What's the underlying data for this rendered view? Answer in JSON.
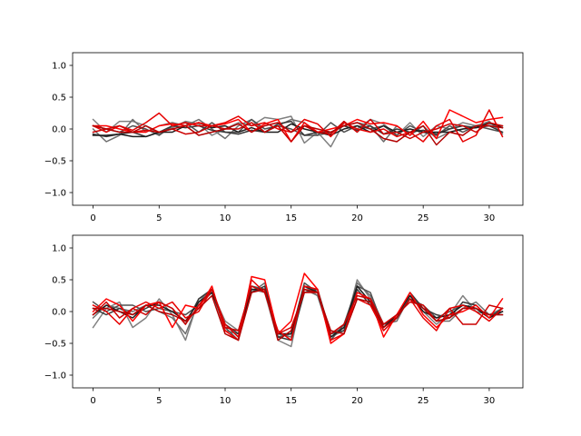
{
  "chart_data": [
    {
      "type": "line",
      "title": "",
      "xlabel": "",
      "ylabel": "",
      "xlim": [
        -1.55,
        32.55
      ],
      "ylim": [
        -1.2,
        1.2
      ],
      "xticks": [
        0,
        5,
        10,
        15,
        20,
        25,
        30
      ],
      "yticks": [
        -1.0,
        -0.5,
        0.0,
        0.5,
        1.0
      ],
      "xtick_labels": [
        "0",
        "5",
        "10",
        "15",
        "20",
        "25",
        "30"
      ],
      "ytick_labels": [
        "−1.0",
        "−0.5",
        "0.0",
        "0.5",
        "1.0"
      ],
      "grid": false,
      "legend": "none",
      "x": [
        0,
        1,
        2,
        3,
        4,
        5,
        6,
        7,
        8,
        9,
        10,
        11,
        12,
        13,
        14,
        15,
        16,
        17,
        18,
        19,
        20,
        21,
        22,
        23,
        24,
        25,
        26,
        27,
        28,
        29,
        30,
        31
      ],
      "series": [
        {
          "color": "#808080",
          "values": [
            0.15,
            -0.05,
            0.12,
            0.12,
            0.05,
            -0.08,
            0.02,
            0.12,
            0.08,
            -0.1,
            0.0,
            0.1,
            0.05,
            0.18,
            0.15,
            0.2,
            -0.22,
            -0.05,
            -0.28,
            0.1,
            0.0,
            0.15,
            0.08,
            -0.1,
            0.1,
            -0.12,
            0.05,
            0.0,
            0.1,
            0.05,
            0.12,
            -0.08
          ]
        },
        {
          "color": "#6e6e6e",
          "values": [
            0.0,
            -0.2,
            -0.1,
            0.15,
            -0.05,
            0.05,
            0.1,
            0.05,
            0.15,
            0.0,
            -0.15,
            0.05,
            0.15,
            -0.05,
            0.05,
            0.15,
            0.1,
            -0.1,
            -0.05,
            0.05,
            0.1,
            0.05,
            -0.2,
            0.05,
            -0.1,
            0.05,
            -0.15,
            -0.05,
            0.0,
            0.05,
            0.08,
            0.05
          ]
        },
        {
          "color": "#505050",
          "values": [
            0.05,
            0.0,
            -0.05,
            0.05,
            0.0,
            -0.1,
            0.05,
            0.1,
            -0.05,
            0.1,
            -0.05,
            -0.05,
            0.15,
            0.0,
            0.05,
            0.0,
            -0.1,
            -0.1,
            0.1,
            -0.05,
            0.05,
            0.0,
            0.05,
            -0.1,
            0.05,
            -0.05,
            -0.1,
            0.05,
            -0.05,
            0.05,
            0.0,
            -0.05
          ]
        },
        {
          "color": "#383838",
          "values": [
            -0.08,
            -0.12,
            -0.08,
            -0.05,
            -0.12,
            -0.05,
            0.05,
            0.02,
            0.05,
            -0.02,
            -0.05,
            -0.08,
            -0.02,
            -0.05,
            0.08,
            0.12,
            -0.1,
            -0.05,
            -0.05,
            0.05,
            -0.02,
            0.05,
            -0.08,
            0.0,
            -0.05,
            -0.02,
            -0.08,
            0.0,
            0.05,
            0.02,
            0.05,
            -0.05
          ]
        },
        {
          "color": "#1e1e1e",
          "values": [
            -0.1,
            -0.1,
            -0.08,
            -0.12,
            -0.12,
            -0.05,
            -0.05,
            0.05,
            0.1,
            0.02,
            0.05,
            -0.05,
            0.02,
            -0.05,
            -0.05,
            0.08,
            0.0,
            -0.05,
            -0.1,
            0.0,
            0.05,
            -0.05,
            0.05,
            -0.05,
            0.0,
            -0.05,
            -0.05,
            -0.05,
            0.0,
            0.02,
            0.1,
            0.02
          ]
        },
        {
          "color": "#ff0000",
          "values": [
            0.05,
            0.05,
            0.0,
            -0.05,
            -0.05,
            0.05,
            0.08,
            0.05,
            0.1,
            0.05,
            0.08,
            0.15,
            -0.05,
            0.08,
            0.15,
            -0.2,
            0.1,
            -0.05,
            0.0,
            0.05,
            0.15,
            0.08,
            0.1,
            0.05,
            -0.1,
            0.12,
            -0.15,
            0.3,
            0.2,
            0.1,
            0.15,
            0.18
          ]
        },
        {
          "color": "#e60000",
          "values": [
            0.05,
            -0.05,
            0.05,
            -0.02,
            0.1,
            0.25,
            0.05,
            0.1,
            0.05,
            0.05,
            0.1,
            0.2,
            0.05,
            0.1,
            0.0,
            -0.05,
            0.15,
            0.08,
            -0.12,
            0.1,
            0.0,
            -0.05,
            0.0,
            -0.12,
            -0.05,
            -0.2,
            0.05,
            0.15,
            -0.2,
            -0.1,
            0.3,
            -0.12
          ]
        },
        {
          "color": "#cc0000",
          "values": [
            -0.05,
            0.0,
            0.05,
            -0.05,
            -0.02,
            -0.05,
            0.0,
            -0.08,
            -0.05,
            0.05,
            0.0,
            0.0,
            0.1,
            -0.05,
            0.05,
            -0.2,
            0.05,
            -0.05,
            -0.08,
            0.12,
            -0.05,
            0.15,
            -0.08,
            -0.05,
            -0.15,
            -0.05,
            0.0,
            0.08,
            0.05,
            -0.05,
            0.1,
            0.05
          ]
        },
        {
          "color": "#b30000",
          "values": [
            0.05,
            0.0,
            -0.05,
            -0.05,
            0.05,
            -0.05,
            0.0,
            0.05,
            -0.1,
            -0.05,
            0.0,
            0.08,
            -0.05,
            0.05,
            0.1,
            -0.05,
            0.05,
            0.0,
            -0.05,
            0.05,
            0.1,
            0.0,
            -0.15,
            -0.2,
            -0.05,
            0.05,
            -0.25,
            -0.05,
            -0.1,
            0.05,
            0.05,
            0.02
          ]
        }
      ]
    },
    {
      "type": "line",
      "title": "",
      "xlabel": "",
      "ylabel": "",
      "xlim": [
        -1.55,
        32.55
      ],
      "ylim": [
        -1.2,
        1.2
      ],
      "xticks": [
        0,
        5,
        10,
        15,
        20,
        25,
        30
      ],
      "yticks": [
        -1.0,
        -0.5,
        0.0,
        0.5,
        1.0
      ],
      "xtick_labels": [
        "0",
        "5",
        "10",
        "15",
        "20",
        "25",
        "30"
      ],
      "ytick_labels": [
        "−1.0",
        "−0.5",
        "0.0",
        "0.5",
        "1.0"
      ],
      "grid": false,
      "legend": "none",
      "x": [
        0,
        1,
        2,
        3,
        4,
        5,
        6,
        7,
        8,
        9,
        10,
        11,
        12,
        13,
        14,
        15,
        16,
        17,
        18,
        19,
        20,
        21,
        22,
        23,
        24,
        25,
        26,
        27,
        28,
        29,
        30,
        31
      ],
      "series": [
        {
          "color": "#808080",
          "values": [
            -0.25,
            0.05,
            0.15,
            -0.25,
            -0.1,
            0.2,
            -0.05,
            -0.45,
            0.2,
            0.3,
            -0.15,
            -0.3,
            0.35,
            0.3,
            -0.45,
            -0.55,
            0.4,
            0.25,
            -0.4,
            -0.3,
            0.5,
            0.2,
            -0.3,
            -0.1,
            0.25,
            0.0,
            -0.2,
            -0.05,
            0.25,
            0.0,
            -0.05,
            -0.05
          ]
        },
        {
          "color": "#6e6e6e",
          "values": [
            -0.1,
            0.1,
            0.05,
            0.0,
            0.1,
            0.0,
            -0.1,
            -0.35,
            0.15,
            0.35,
            -0.3,
            -0.35,
            0.3,
            0.45,
            -0.35,
            -0.4,
            0.35,
            0.25,
            -0.35,
            -0.25,
            0.45,
            0.25,
            -0.2,
            -0.15,
            0.25,
            0.05,
            -0.15,
            -0.15,
            0.05,
            0.15,
            -0.05,
            0.05
          ]
        },
        {
          "color": "#505050",
          "values": [
            0.15,
            0.0,
            0.1,
            0.1,
            0.0,
            0.05,
            0.0,
            -0.05,
            0.1,
            0.3,
            -0.25,
            -0.45,
            0.4,
            0.35,
            -0.4,
            -0.35,
            0.45,
            0.3,
            -0.45,
            -0.2,
            0.4,
            0.3,
            -0.25,
            -0.05,
            0.2,
            0.1,
            -0.1,
            0.0,
            0.1,
            0.05,
            -0.05,
            0.0
          ]
        },
        {
          "color": "#383838",
          "values": [
            0.05,
            -0.05,
            0.05,
            -0.05,
            0.05,
            0.15,
            0.05,
            -0.2,
            0.2,
            0.35,
            -0.2,
            -0.35,
            0.3,
            0.4,
            -0.4,
            -0.45,
            0.3,
            0.35,
            -0.35,
            -0.3,
            0.35,
            0.1,
            -0.2,
            -0.1,
            0.3,
            0.05,
            -0.05,
            -0.1,
            0.15,
            0.1,
            -0.1,
            0.05
          ]
        },
        {
          "color": "#1e1e1e",
          "values": [
            -0.05,
            0.1,
            0.0,
            -0.1,
            0.1,
            0.1,
            0.0,
            -0.15,
            0.15,
            0.3,
            -0.2,
            -0.4,
            0.35,
            0.35,
            -0.35,
            -0.35,
            0.4,
            0.3,
            -0.4,
            -0.25,
            0.4,
            0.15,
            -0.25,
            -0.05,
            0.25,
            0.0,
            -0.1,
            -0.05,
            0.1,
            0.05,
            -0.1,
            0.0
          ]
        },
        {
          "color": "#ff0000",
          "values": [
            0.0,
            0.2,
            0.1,
            -0.15,
            0.1,
            0.15,
            -0.25,
            0.1,
            0.05,
            0.4,
            -0.3,
            -0.45,
            0.55,
            0.5,
            -0.35,
            -0.15,
            0.6,
            0.35,
            -0.5,
            -0.35,
            0.3,
            0.2,
            -0.4,
            -0.05,
            0.3,
            -0.05,
            -0.25,
            -0.05,
            0.0,
            0.1,
            -0.1,
            0.2
          ]
        },
        {
          "color": "#e60000",
          "values": [
            0.1,
            0.0,
            -0.2,
            0.05,
            0.15,
            0.05,
            0.15,
            -0.1,
            0.0,
            0.35,
            -0.2,
            -0.4,
            0.5,
            0.3,
            -0.3,
            -0.45,
            0.4,
            0.35,
            -0.45,
            -0.35,
            0.2,
            0.1,
            -0.3,
            -0.1,
            0.2,
            -0.1,
            -0.3,
            0.05,
            0.1,
            0.0,
            -0.15,
            0.05
          ]
        },
        {
          "color": "#cc0000",
          "values": [
            -0.05,
            0.15,
            -0.1,
            0.05,
            -0.05,
            0.15,
            0.05,
            -0.2,
            0.1,
            0.35,
            -0.25,
            -0.3,
            0.4,
            0.3,
            -0.35,
            -0.25,
            0.3,
            0.3,
            -0.35,
            -0.2,
            0.25,
            0.2,
            -0.2,
            -0.05,
            0.15,
            0.1,
            -0.15,
            0.05,
            -0.2,
            -0.2,
            0.1,
            0.05
          ]
        },
        {
          "color": "#b30000",
          "values": [
            0.05,
            0.05,
            0.0,
            -0.05,
            0.1,
            0.0,
            -0.05,
            -0.15,
            0.05,
            0.25,
            -0.35,
            -0.45,
            0.3,
            0.35,
            -0.45,
            -0.3,
            0.35,
            0.3,
            -0.3,
            -0.35,
            0.2,
            0.15,
            -0.25,
            -0.1,
            0.2,
            0.05,
            -0.15,
            -0.1,
            0.05,
            0.05,
            -0.05,
            -0.05
          ]
        }
      ]
    }
  ]
}
